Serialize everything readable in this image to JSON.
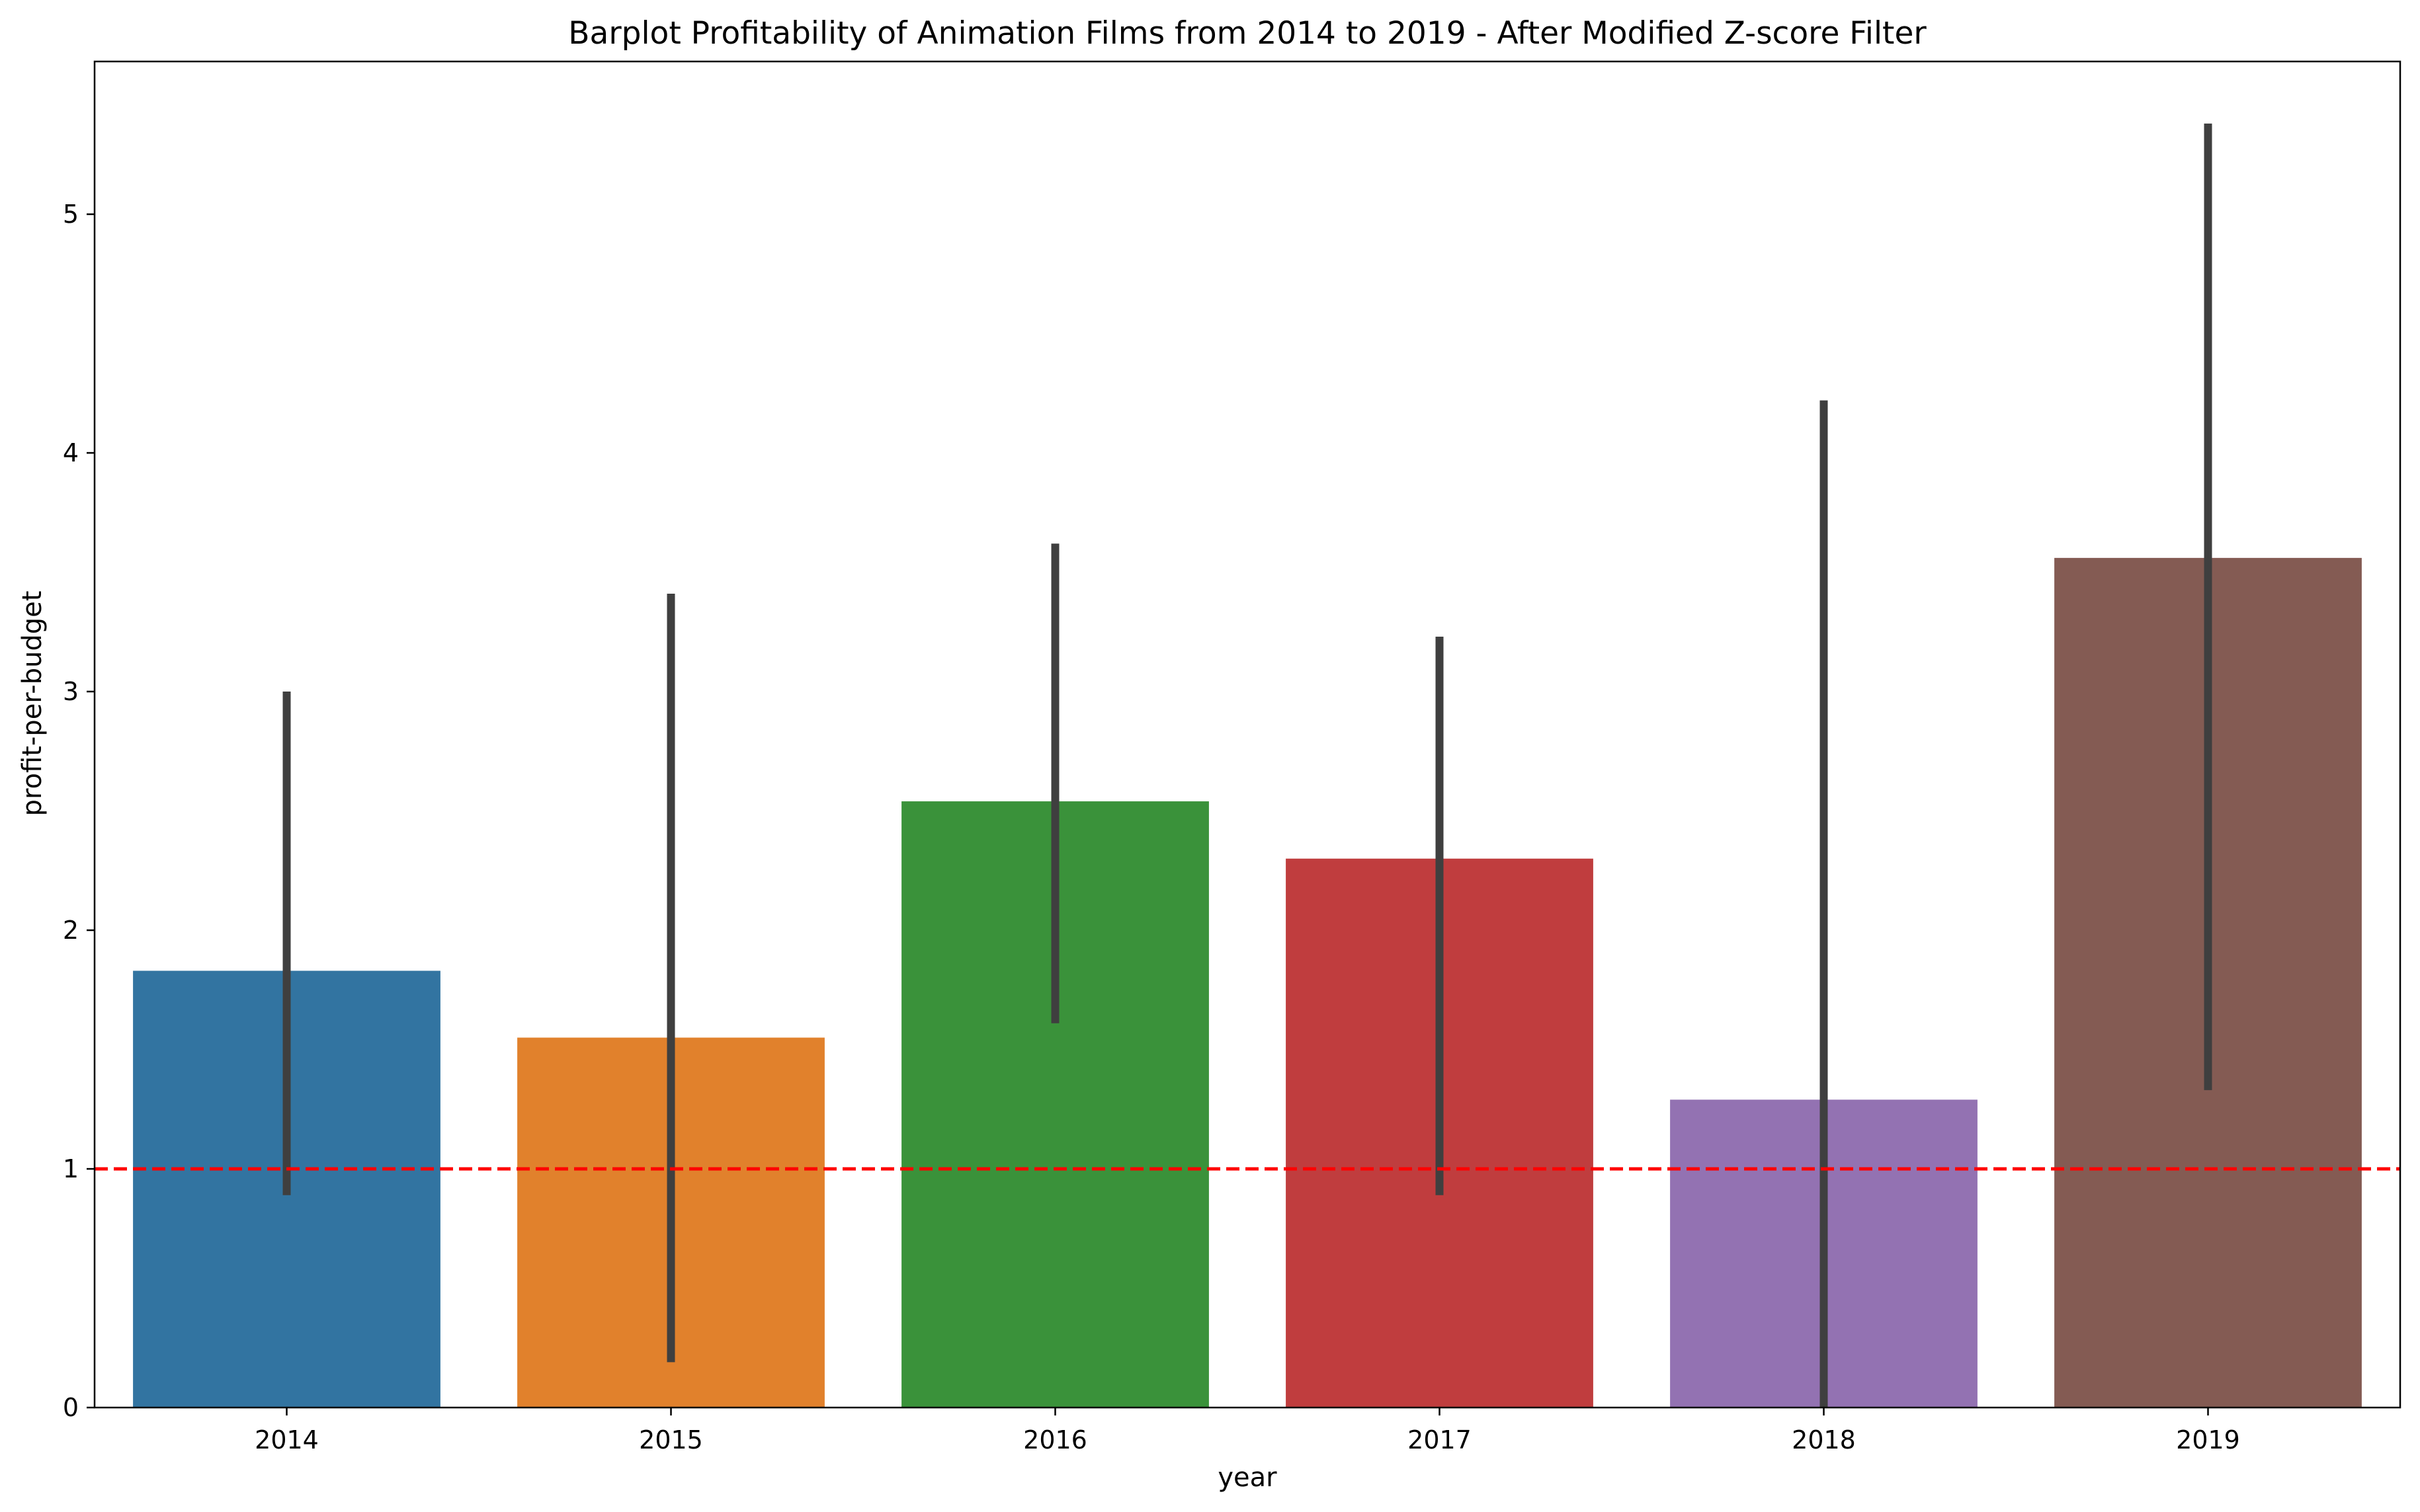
{
  "chart_data": {
    "type": "bar",
    "title": "Barplot Profitability of Animation Films from 2014 to 2019 - After Modified Z-score Filter",
    "xlabel": "year",
    "ylabel": "profit-per-budget",
    "categories": [
      "2014",
      "2015",
      "2016",
      "2017",
      "2018",
      "2019"
    ],
    "values": [
      1.83,
      1.55,
      2.54,
      2.3,
      1.29,
      3.56
    ],
    "error_low": [
      0.89,
      0.19,
      1.61,
      0.89,
      0.0,
      1.33
    ],
    "error_high": [
      3.0,
      3.41,
      3.62,
      3.23,
      4.22,
      5.38
    ],
    "colors": [
      "#3274a1",
      "#e1812c",
      "#3a923a",
      "#c03d3e",
      "#9372b2",
      "#845b53"
    ],
    "ylim": [
      0,
      5.64
    ],
    "yticks": [
      "0",
      "1",
      "2",
      "3",
      "4",
      "5"
    ],
    "reference_line": {
      "y": 1,
      "color": "#ff0000",
      "style": "dashed"
    },
    "error_bar_color": "#3f3f3f",
    "grid": false,
    "legend": "none"
  }
}
